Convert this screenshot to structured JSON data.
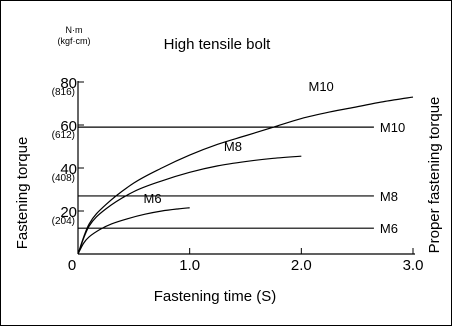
{
  "chart_data": {
    "type": "line",
    "title": "High tensile bolt",
    "units": [
      "N·m",
      "(kgf·cm)"
    ],
    "xlabel": "Fastening time (S)",
    "ylabel": "Fastening torque",
    "right_label": "Proper fastening torque",
    "xlim": [
      0,
      3.0
    ],
    "ylim": [
      0,
      80
    ],
    "x_ticks": [
      {
        "value": 0,
        "label": "0"
      },
      {
        "value": 1.0,
        "label": "1.0"
      },
      {
        "value": 2.0,
        "label": "2.0"
      },
      {
        "value": 3.0,
        "label": "3.0"
      }
    ],
    "y_ticks": [
      {
        "value": 20,
        "label": "20",
        "kgf": "(204)"
      },
      {
        "value": 40,
        "label": "40",
        "kgf": "(408)"
      },
      {
        "value": 60,
        "label": "60",
        "kgf": "(612)"
      },
      {
        "value": 80,
        "label": "80",
        "kgf": "(816)"
      }
    ],
    "grid": false,
    "series": [
      {
        "name": "M10",
        "x": [
          0,
          0.1,
          0.25,
          0.5,
          0.75,
          1.0,
          1.25,
          1.5,
          1.75,
          2.0,
          2.25,
          2.5,
          2.75,
          3.0
        ],
        "y": [
          0,
          14,
          23,
          33,
          40,
          46,
          51,
          55,
          59,
          63,
          66,
          68.5,
          71,
          73
        ]
      },
      {
        "name": "M8",
        "x": [
          0,
          0.1,
          0.25,
          0.5,
          0.75,
          1.0,
          1.25,
          1.5,
          1.75,
          2.0
        ],
        "y": [
          0,
          13,
          21,
          29,
          34,
          38,
          41,
          43,
          44.5,
          45.5
        ]
      },
      {
        "name": "M6",
        "x": [
          0,
          0.05,
          0.1,
          0.2,
          0.3,
          0.45,
          0.6,
          0.75,
          0.9,
          1.0
        ],
        "y": [
          0,
          5,
          8,
          11.5,
          14,
          16.5,
          18.5,
          20,
          21,
          21.5
        ]
      }
    ],
    "reference_lines": [
      {
        "name": "M10",
        "y": 59
      },
      {
        "name": "M8",
        "y": 27
      },
      {
        "name": "M6",
        "y": 12
      }
    ]
  }
}
